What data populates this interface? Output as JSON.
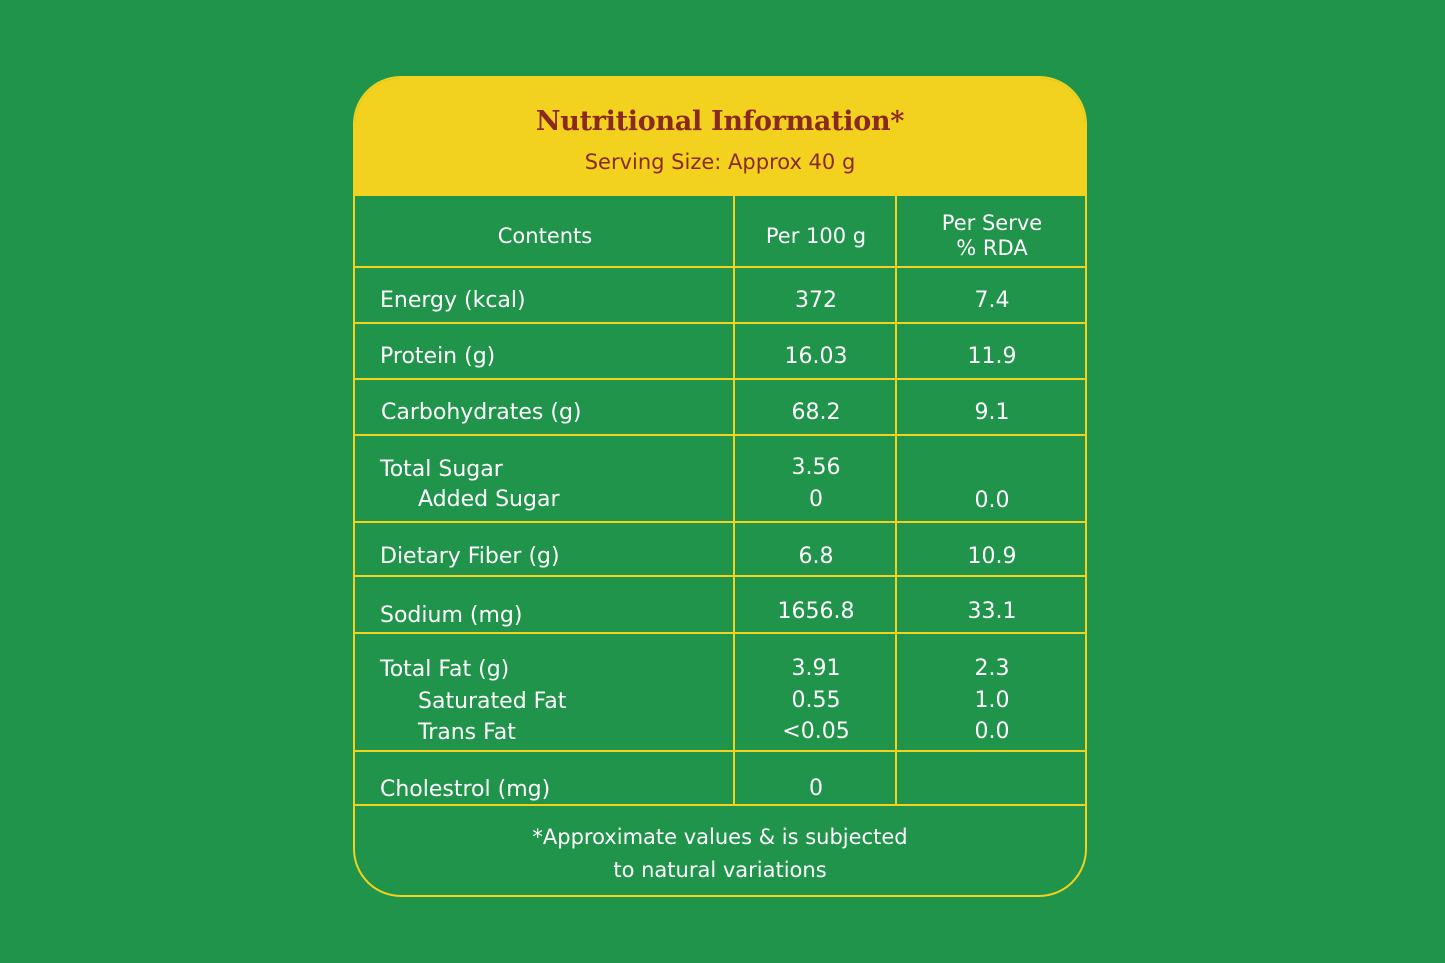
{
  "colors": {
    "background": "#1f944a",
    "accent": "#f2d21e",
    "title": "#8a2a1f",
    "text": "#ffffff"
  },
  "header": {
    "title": "Nutritional Information*",
    "subtitle": "Serving Size: Approx 40 g"
  },
  "table": {
    "columns": [
      "Contents",
      "Per 100 g",
      "Per Serve\n% RDA"
    ],
    "rows": [
      {
        "label": "Energy (kcal)",
        "per100": "372",
        "rda": "7.4"
      },
      {
        "label": "Protein (g)",
        "per100": "16.03",
        "rda": "11.9"
      },
      {
        "label": "Carbohydrates (g)",
        "per100": "68.2",
        "rda": "9.1"
      },
      {
        "label": "Total Sugar",
        "per100": "3.56",
        "rda": "",
        "sub": [
          {
            "label": "Added Sugar",
            "per100": "0",
            "rda": "0.0"
          }
        ]
      },
      {
        "label": "Dietary Fiber (g)",
        "per100": "6.8",
        "rda": "10.9"
      },
      {
        "label": "Sodium (mg)",
        "per100": "1656.8",
        "rda": "33.1"
      },
      {
        "label": "Total Fat (g)",
        "per100": "3.91",
        "rda": "2.3",
        "sub": [
          {
            "label": "Saturated Fat",
            "per100": "0.55",
            "rda": "1.0"
          },
          {
            "label": "Trans Fat",
            "per100": "<0.05",
            "rda": "0.0"
          }
        ]
      },
      {
        "label": "Cholestrol (mg)",
        "per100": "0",
        "rda": ""
      }
    ]
  },
  "footer": {
    "line1": "*Approximate values & is subjected",
    "line2": "to natural variations"
  }
}
